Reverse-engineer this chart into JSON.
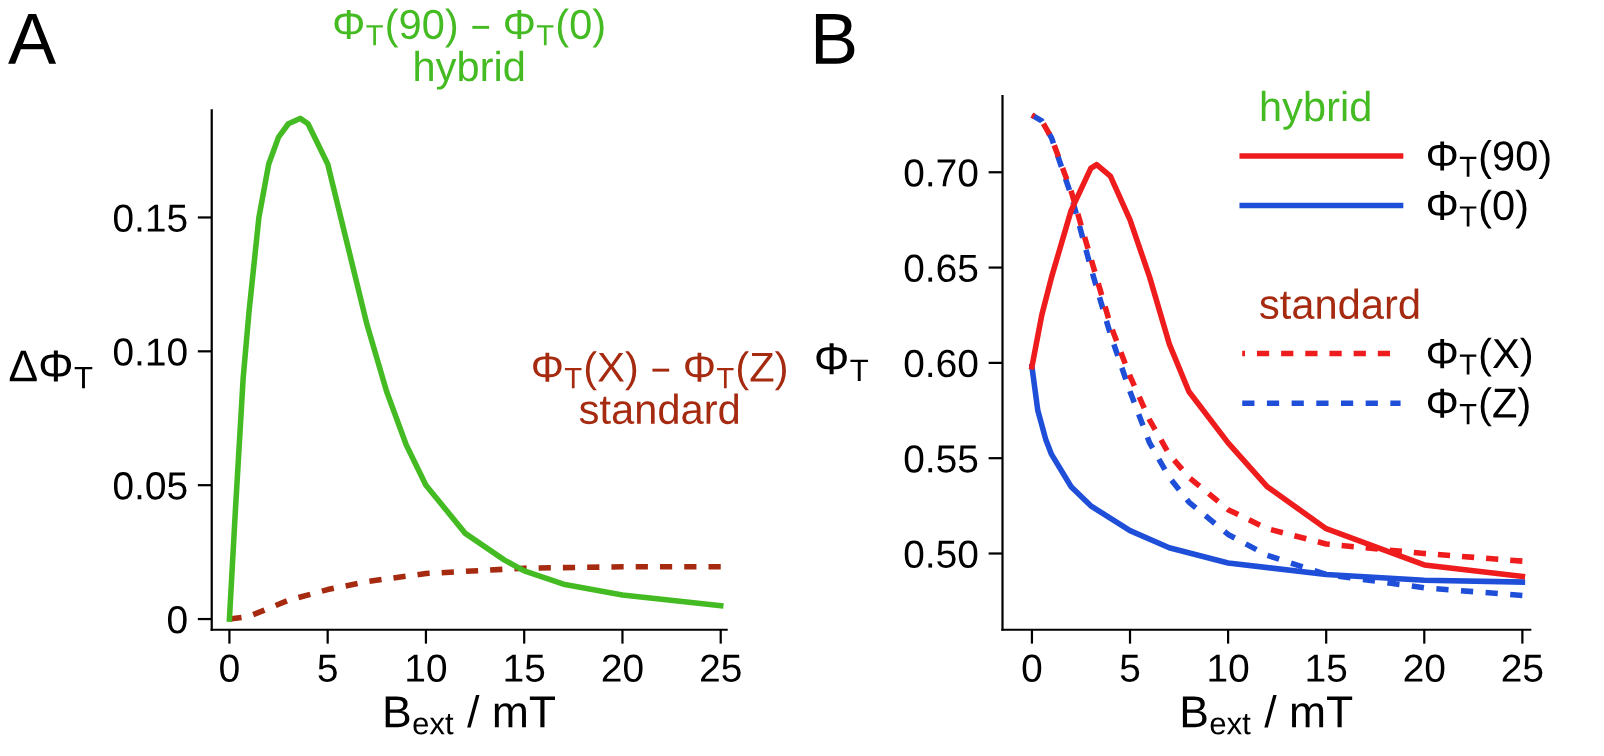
{
  "chart_data": [
    {
      "type": "line",
      "xlabel": "B$_{ext}$ / mT",
      "ylabel": "ΔΦ$_{T}$",
      "annotations": [
        "A",
        "hybrid",
        "standard"
      ],
      "xlim": [
        -0.9,
        25.3
      ],
      "ylim": [
        -0.004,
        0.19
      ],
      "xticks": [
        0,
        5,
        10,
        15,
        20,
        25
      ],
      "yticks": [
        {
          "value": 0,
          "label": "0"
        },
        0.05,
        {
          "value": 0.1,
          "label": "0.10"
        },
        0.15
      ],
      "grid": false,
      "legend": false,
      "series": [
        {
          "name": "Φ$_{T}$(90) – Φ$_{T}$(0)",
          "color": "#44bb22",
          "line_style": "solid",
          "x": [
            0,
            0.3,
            0.7,
            1,
            1.5,
            2,
            2.5,
            3,
            3.6,
            4,
            5,
            6,
            7,
            8,
            9,
            10,
            12,
            14,
            15,
            17,
            20,
            25
          ],
          "values": [
            0,
            0.04,
            0.09,
            0.115,
            0.15,
            0.17,
            0.18,
            0.185,
            0.187,
            0.185,
            0.17,
            0.14,
            0.11,
            0.085,
            0.065,
            0.05,
            0.032,
            0.022,
            0.018,
            0.013,
            0.009,
            0.005
          ]
        },
        {
          "name": "Φ$_{T}$(X) – Φ$_{T}$(Z)",
          "color": "#a52a10",
          "line_style": "dashed",
          "x": [
            0,
            1,
            3,
            5,
            7,
            10,
            15,
            20,
            25
          ],
          "values": [
            0,
            0.001,
            0.007,
            0.011,
            0.014,
            0.017,
            0.019,
            0.0195,
            0.0195
          ]
        }
      ]
    },
    {
      "type": "line",
      "xlabel": "B$_{ext}$ / mT",
      "ylabel": "Φ$_{T}$",
      "annotations": [
        "B",
        "hybrid",
        "standard"
      ],
      "xlim": [
        -1.5,
        25.4
      ],
      "ylim": [
        0.46,
        0.74
      ],
      "xticks": [
        0,
        5,
        10,
        15,
        20,
        25
      ],
      "yticks": [
        {
          "value": 0.5,
          "label": "0.50"
        },
        0.55,
        {
          "value": 0.6,
          "label": "0.60"
        },
        0.65,
        {
          "value": 0.7,
          "label": "0.70"
        }
      ],
      "grid": false,
      "legend": "top right",
      "series": [
        {
          "name": "Φ$_{T}$(90)",
          "color": "#ee1c1c",
          "line_style": "solid",
          "x": [
            0,
            0.5,
            1,
            2,
            3,
            3.3,
            4,
            5,
            6,
            7,
            8,
            10,
            12,
            15,
            20,
            25
          ],
          "values": [
            0.598,
            0.625,
            0.645,
            0.68,
            0.702,
            0.704,
            0.698,
            0.675,
            0.645,
            0.61,
            0.585,
            0.558,
            0.535,
            0.513,
            0.494,
            0.488
          ]
        },
        {
          "name": "Φ$_{T}$(0)",
          "color": "#1f4fd8",
          "line_style": "solid",
          "x": [
            0,
            0.3,
            0.7,
            1,
            2,
            3,
            5,
            7,
            10,
            15,
            20,
            25
          ],
          "values": [
            0.598,
            0.575,
            0.56,
            0.552,
            0.535,
            0.525,
            0.512,
            0.503,
            0.495,
            0.489,
            0.486,
            0.485
          ]
        },
        {
          "name": "Φ$_{T}$(X)",
          "color": "#ee1c1c",
          "line_style": "dashed",
          "x": [
            0,
            0.5,
            1,
            2,
            3,
            4,
            5,
            6,
            7,
            8,
            10,
            12,
            15,
            20,
            25
          ],
          "values": [
            0.73,
            0.727,
            0.718,
            0.69,
            0.655,
            0.62,
            0.593,
            0.57,
            0.552,
            0.54,
            0.523,
            0.513,
            0.505,
            0.5,
            0.496
          ]
        },
        {
          "name": "Φ$_{T}$(Z)",
          "color": "#1f4fd8",
          "line_style": "dashed",
          "x": [
            0,
            0.5,
            1,
            2,
            3,
            4,
            5,
            6,
            7,
            8,
            10,
            12,
            15,
            20,
            25
          ],
          "values": [
            0.73,
            0.727,
            0.718,
            0.688,
            0.65,
            0.615,
            0.585,
            0.558,
            0.54,
            0.527,
            0.51,
            0.499,
            0.489,
            0.482,
            0.478
          ]
        }
      ]
    }
  ]
}
